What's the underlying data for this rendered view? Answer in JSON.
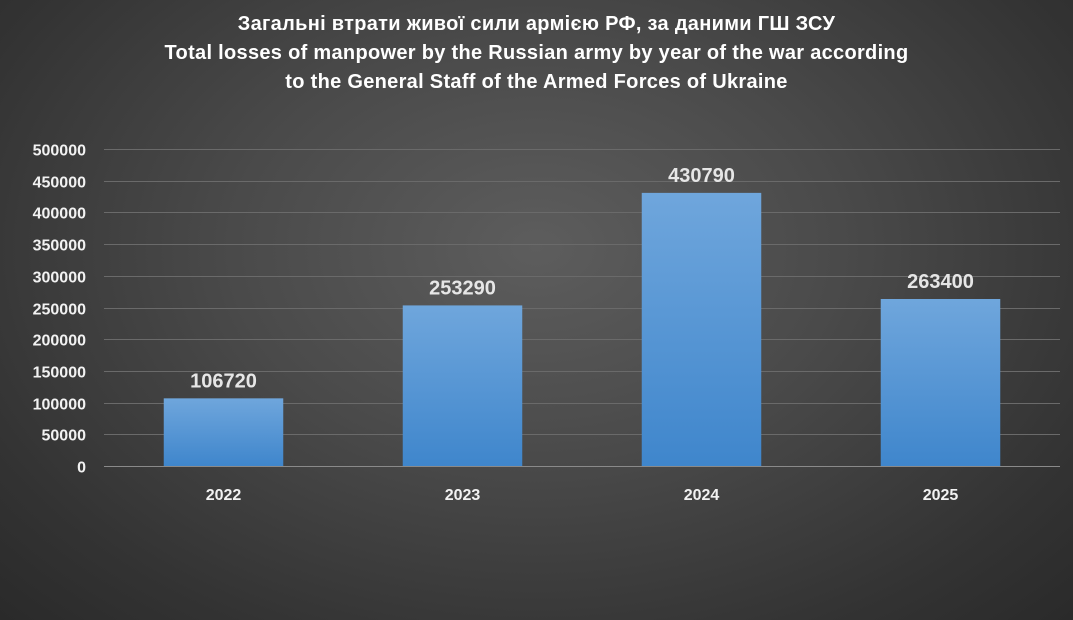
{
  "chart_data": {
    "type": "bar",
    "title_lines": [
      "Загальні втрати живої сили армією РФ, за даними ГШ ЗСУ",
      "Total losses of manpower by the Russian army by year of the war according",
      "to the General Staff of the Armed Forces of Ukraine"
    ],
    "xlabel": "",
    "ylabel": "",
    "categories": [
      "2022",
      "2023",
      "2024",
      "2025"
    ],
    "values": [
      106720,
      253290,
      430790,
      263400
    ],
    "data_labels": [
      "106720",
      "253290",
      "430790",
      "263400"
    ],
    "ylim": [
      0,
      500000
    ],
    "yticks": [
      0,
      50000,
      100000,
      150000,
      200000,
      250000,
      300000,
      350000,
      400000,
      450000,
      500000
    ],
    "ytick_labels": [
      "0",
      "50000",
      "100000",
      "150000",
      "200000",
      "250000",
      "300000",
      "350000",
      "400000",
      "450000",
      "500000"
    ],
    "grid": true,
    "legend": "none",
    "colors": {
      "bar_top": "#6fa6dc",
      "bar_bottom": "#3f86cc",
      "grid": "#6a6a6a",
      "axis": "#8a8a8a",
      "text": "#f2f2f2"
    }
  }
}
